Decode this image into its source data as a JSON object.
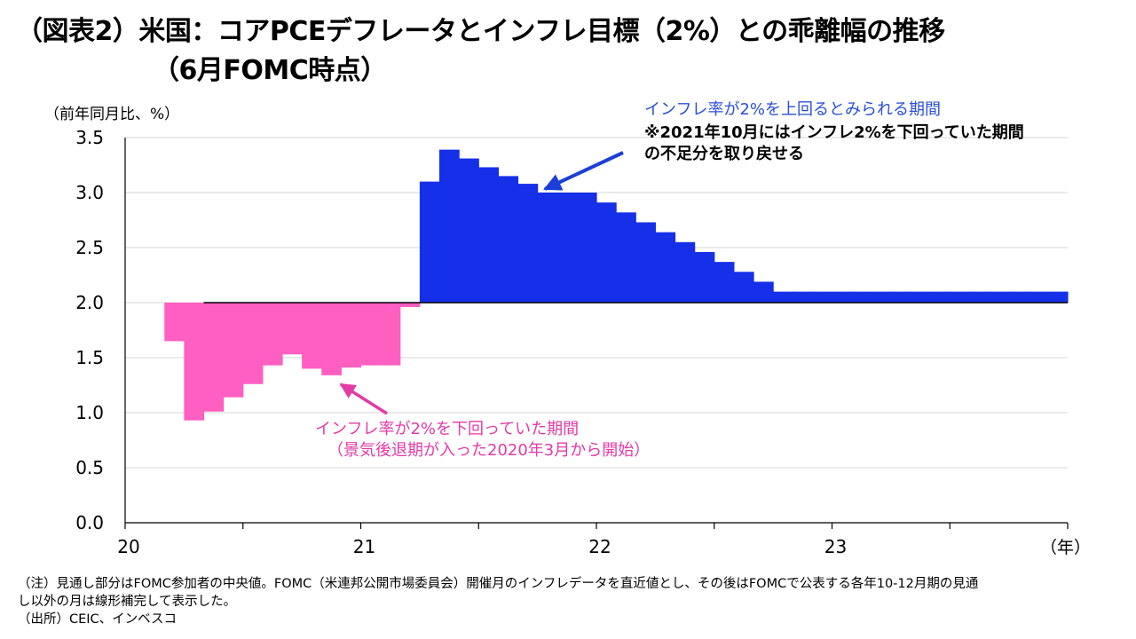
{
  "title": {
    "line1": "（図表2）米国：コアPCEデフレータとインフレ目標（2%）との乖離幅の推移",
    "line2": "（6月FOMC時点）"
  },
  "chart_data": {
    "type": "area",
    "y_unit_label": "（前年同月比、%）",
    "x_unit_label": "（年）",
    "ylim": [
      0,
      3.5
    ],
    "xlim": [
      2020.0,
      2024.0
    ],
    "y_ticks": [
      "0.0",
      "0.5",
      "1.0",
      "1.5",
      "2.0",
      "2.5",
      "3.0",
      "3.5"
    ],
    "x_ticks": [
      {
        "label": "20",
        "x": 2020.0
      },
      {
        "label": "21",
        "x": 2021.0
      },
      {
        "label": "22",
        "x": 2022.0
      },
      {
        "label": "23",
        "x": 2023.0
      }
    ],
    "baseline": 2.0,
    "grid": true,
    "months": [
      "2020-03",
      "2020-04",
      "2020-05",
      "2020-06",
      "2020-07",
      "2020-08",
      "2020-09",
      "2020-10",
      "2020-11",
      "2020-12",
      "2021-01",
      "2021-02",
      "2021-03",
      "2021-04",
      "2021-05",
      "2021-06",
      "2021-07",
      "2021-08",
      "2021-09",
      "2021-10",
      "2021-11",
      "2021-12",
      "2022-01",
      "2022-02",
      "2022-03",
      "2022-04",
      "2022-05",
      "2022-06",
      "2022-07",
      "2022-08",
      "2022-09",
      "2022-10",
      "2022-11",
      "2022-12",
      "2023-01",
      "2023-02",
      "2023-03",
      "2023-04",
      "2023-05",
      "2023-06",
      "2023-07",
      "2023-08",
      "2023-09",
      "2023-10",
      "2023-11",
      "2023-12"
    ],
    "values": [
      1.65,
      0.93,
      1.01,
      1.14,
      1.26,
      1.43,
      1.53,
      1.4,
      1.34,
      1.41,
      1.43,
      1.43,
      1.96,
      3.1,
      3.39,
      3.31,
      3.23,
      3.15,
      3.08,
      3.0,
      3.0,
      3.0,
      2.91,
      2.82,
      2.73,
      2.64,
      2.55,
      2.46,
      2.37,
      2.28,
      2.19,
      2.1,
      2.1,
      2.1,
      2.1,
      2.1,
      2.1,
      2.1,
      2.1,
      2.1,
      2.1,
      2.1,
      2.1,
      2.1,
      2.1,
      2.1
    ],
    "above_color": "#1530e8",
    "below_color": "#ff5fc0",
    "annotations": {
      "above_title": "インフレ率が2%を上回るとみられる期間",
      "above_note_line1": "※2021年10月にはインフレ2%を下回っていた期間",
      "above_note_line2": "の不足分を取り戻せる",
      "below_line1": "インフレ率が2%を下回っていた期間",
      "below_line2": "（景気後退期が入った2020年3月から開始）"
    }
  },
  "notes": {
    "line1": "（注）見通し部分はFOMC参加者の中央値。FOMC（米連邦公開市場委員会）開催月のインフレデータを直近値とし、その後はFOMCで公表する各年10-12月期の見通",
    "line2": "し以外の月は線形補完して表示した。",
    "line3": "（出所）CEIC、インベスコ"
  }
}
